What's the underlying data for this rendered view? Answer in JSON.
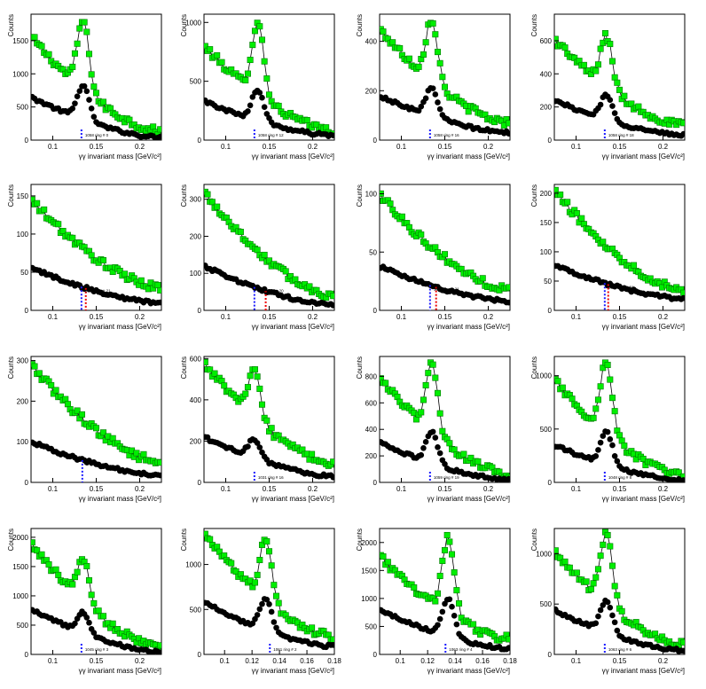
{
  "figure": {
    "background": "#ffffff",
    "green": "#00ee00",
    "black": "#000000",
    "blue": "#1a1aff",
    "red": "#ee0000"
  },
  "chart_data": [
    {
      "id": "p0",
      "type": "scatter",
      "xlabel": "γγ invariant mass [GeV/c²]",
      "ylabel": "Counts",
      "xlim": [
        0.075,
        0.225
      ],
      "ylim": [
        0,
        1900
      ],
      "xticks": [
        0.1,
        0.15,
        0.2
      ],
      "yticks": [
        0,
        500,
        1000,
        1500
      ],
      "annotation": "1058 ring # 0",
      "series": [
        {
          "color": "#00ee00",
          "peak_x": 0.135,
          "peak_y": 1800,
          "bg_start": 1560,
          "bg_end": 130
        },
        {
          "color": "#000000",
          "peak_x": 0.135,
          "peak_y": 830,
          "bg_start": 650,
          "bg_end": 40
        }
      ],
      "markers": [
        {
          "x": 0.133,
          "color": "#1a1aff"
        }
      ]
    },
    {
      "id": "p1",
      "type": "scatter",
      "xlabel": "γγ invariant mass [GeV/c²]",
      "ylabel": "Counts",
      "xlim": [
        0.075,
        0.225
      ],
      "ylim": [
        0,
        1070
      ],
      "xticks": [
        0.1,
        0.15,
        0.2
      ],
      "yticks": [
        0,
        500,
        1000
      ],
      "annotation": "1058 ring # 12",
      "series": [
        {
          "color": "#00ee00",
          "peak_x": 0.137,
          "peak_y": 1000,
          "bg_start": 800,
          "bg_end": 80
        },
        {
          "color": "#000000",
          "peak_x": 0.137,
          "peak_y": 430,
          "bg_start": 330,
          "bg_end": 40
        }
      ],
      "markers": [
        {
          "x": 0.133,
          "color": "#1a1aff"
        }
      ]
    },
    {
      "id": "p2",
      "type": "scatter",
      "xlabel": "γγ invariant mass [GeV/c²]",
      "ylabel": "Counts",
      "xlim": [
        0.075,
        0.225
      ],
      "ylim": [
        0,
        510
      ],
      "xticks": [
        0.1,
        0.15,
        0.2
      ],
      "yticks": [
        0,
        200,
        400
      ],
      "annotation": "1058 ring # 16",
      "series": [
        {
          "color": "#00ee00",
          "peak_x": 0.135,
          "peak_y": 490,
          "bg_start": 450,
          "bg_end": 70
        },
        {
          "color": "#000000",
          "peak_x": 0.135,
          "peak_y": 210,
          "bg_start": 180,
          "bg_end": 30
        }
      ],
      "markers": [
        {
          "x": 0.133,
          "color": "#1a1aff"
        }
      ]
    },
    {
      "id": "p3",
      "type": "scatter",
      "xlabel": "γγ invariant mass [GeV/c²]",
      "ylabel": "Counts",
      "xlim": [
        0.075,
        0.225
      ],
      "ylim": [
        0,
        760
      ],
      "xticks": [
        0.1,
        0.15,
        0.2
      ],
      "yticks": [
        0,
        200,
        400,
        600
      ],
      "annotation": "1058 ring # 18",
      "series": [
        {
          "color": "#00ee00",
          "peak_x": 0.135,
          "peak_y": 630,
          "bg_start": 610,
          "bg_end": 90
        },
        {
          "color": "#000000",
          "peak_x": 0.135,
          "peak_y": 270,
          "bg_start": 240,
          "bg_end": 30
        }
      ],
      "markers": [
        {
          "x": 0.133,
          "color": "#1a1aff"
        }
      ]
    },
    {
      "id": "p4",
      "type": "scatter",
      "xlabel": "γγ invariant mass [GeV/c²]",
      "ylabel": "Counts",
      "xlim": [
        0.075,
        0.225
      ],
      "ylim": [
        0,
        165
      ],
      "xticks": [
        0.1,
        0.15,
        0.2
      ],
      "yticks": [
        0,
        50,
        100,
        150
      ],
      "annotation": "1017 ring # 21",
      "series": [
        {
          "color": "#00ee00",
          "peak_x": 0.13,
          "peak_y": 0,
          "bg_start": 145,
          "bg_end": 30
        },
        {
          "color": "#000000",
          "peak_x": 0.13,
          "peak_y": 0,
          "bg_start": 56,
          "bg_end": 10
        }
      ],
      "markers": [
        {
          "x": 0.133,
          "color": "#1a1aff"
        },
        {
          "x": 0.138,
          "color": "#ee0000"
        }
      ]
    },
    {
      "id": "p5",
      "type": "scatter",
      "xlabel": "γγ invariant mass [GeV/c²]",
      "ylabel": "Counts",
      "xlim": [
        0.075,
        0.225
      ],
      "ylim": [
        0,
        340
      ],
      "xticks": [
        0.1,
        0.15,
        0.2
      ],
      "yticks": [
        0,
        100,
        200,
        300
      ],
      "annotation": "1031 ring # 20",
      "series": [
        {
          "color": "#00ee00",
          "peak_x": 0.13,
          "peak_y": 0,
          "bg_start": 320,
          "bg_end": 40
        },
        {
          "color": "#000000",
          "peak_x": 0.13,
          "peak_y": 0,
          "bg_start": 120,
          "bg_end": 15
        }
      ],
      "markers": [
        {
          "x": 0.133,
          "color": "#1a1aff"
        },
        {
          "x": 0.146,
          "color": "#ee0000"
        }
      ]
    },
    {
      "id": "p6",
      "type": "scatter",
      "xlabel": "γγ invariant mass [GeV/c²]",
      "ylabel": "Counts",
      "xlim": [
        0.075,
        0.225
      ],
      "ylim": [
        0,
        108
      ],
      "xticks": [
        0.1,
        0.15,
        0.2
      ],
      "yticks": [
        0,
        50,
        100
      ],
      "annotation": "1034 ring # 21",
      "series": [
        {
          "color": "#00ee00",
          "peak_x": 0.13,
          "peak_y": 0,
          "bg_start": 100,
          "bg_end": 18
        },
        {
          "color": "#000000",
          "peak_x": 0.13,
          "peak_y": 0,
          "bg_start": 38,
          "bg_end": 8
        }
      ],
      "markers": [
        {
          "x": 0.133,
          "color": "#1a1aff"
        },
        {
          "x": 0.14,
          "color": "#ee0000"
        }
      ]
    },
    {
      "id": "p7",
      "type": "scatter",
      "xlabel": "γγ invariant mass [GeV/c²]",
      "ylabel": "Counts",
      "xlim": [
        0.075,
        0.225
      ],
      "ylim": [
        0,
        215
      ],
      "xticks": [
        0.1,
        0.15,
        0.2
      ],
      "yticks": [
        0,
        50,
        100,
        150,
        200
      ],
      "annotation": "1063 ring # 21",
      "series": [
        {
          "color": "#00ee00",
          "peak_x": 0.13,
          "peak_y": 0,
          "bg_start": 205,
          "bg_end": 35
        },
        {
          "color": "#000000",
          "peak_x": 0.13,
          "peak_y": 0,
          "bg_start": 78,
          "bg_end": 20
        }
      ],
      "markers": [
        {
          "x": 0.133,
          "color": "#1a1aff"
        },
        {
          "x": 0.137,
          "color": "#ee0000"
        }
      ]
    },
    {
      "id": "p8",
      "type": "scatter",
      "xlabel": "γγ invariant mass [GeV/c²]",
      "ylabel": "Counts",
      "xlim": [
        0.075,
        0.225
      ],
      "ylim": [
        0,
        310
      ],
      "xticks": [
        0.1,
        0.15,
        0.2
      ],
      "yticks": [
        0,
        100,
        200,
        300
      ],
      "annotation": "ring # 26",
      "series": [
        {
          "color": "#00ee00",
          "peak_x": 0.135,
          "peak_y": 0,
          "bg_start": 290,
          "bg_end": 50
        },
        {
          "color": "#000000",
          "peak_x": 0.135,
          "peak_y": 0,
          "bg_start": 100,
          "bg_end": 18
        }
      ],
      "markers": [
        {
          "x": 0.134,
          "color": "#1a1aff"
        }
      ]
    },
    {
      "id": "p9",
      "type": "scatter",
      "xlabel": "γγ invariant mass [GeV/c²]",
      "ylabel": "Counts",
      "xlim": [
        0.075,
        0.225
      ],
      "ylim": [
        0,
        610
      ],
      "xticks": [
        0.1,
        0.15,
        0.2
      ],
      "yticks": [
        0,
        200,
        400,
        600
      ],
      "annotation": "1031 ring # 16",
      "series": [
        {
          "color": "#00ee00",
          "peak_x": 0.133,
          "peak_y": 540,
          "bg_start": 580,
          "bg_end": 90
        },
        {
          "color": "#000000",
          "peak_x": 0.133,
          "peak_y": 210,
          "bg_start": 220,
          "bg_end": 30
        }
      ],
      "markers": [
        {
          "x": 0.133,
          "color": "#1a1aff"
        }
      ]
    },
    {
      "id": "p10",
      "type": "scatter",
      "xlabel": "γγ invariant mass [GeV/c²]",
      "ylabel": "Counts",
      "xlim": [
        0.075,
        0.225
      ],
      "ylim": [
        0,
        950
      ],
      "xticks": [
        0.1,
        0.15,
        0.2
      ],
      "yticks": [
        0,
        200,
        400,
        600,
        800
      ],
      "annotation": "1059 ring # 19",
      "series": [
        {
          "color": "#00ee00",
          "peak_x": 0.135,
          "peak_y": 900,
          "bg_start": 780,
          "bg_end": 60
        },
        {
          "color": "#000000",
          "peak_x": 0.135,
          "peak_y": 380,
          "bg_start": 300,
          "bg_end": 20
        }
      ],
      "markers": [
        {
          "x": 0.133,
          "color": "#1a1aff"
        }
      ]
    },
    {
      "id": "p11",
      "type": "scatter",
      "xlabel": "γγ invariant mass [GeV/c²]",
      "ylabel": "Counts",
      "xlim": [
        0.075,
        0.225
      ],
      "ylim": [
        0,
        1180
      ],
      "xticks": [
        0.1,
        0.15,
        0.2
      ],
      "yticks": [
        0,
        500,
        1000
      ],
      "annotation": "1048 ring # 8",
      "series": [
        {
          "color": "#00ee00",
          "peak_x": 0.135,
          "peak_y": 1130,
          "bg_start": 960,
          "bg_end": 60
        },
        {
          "color": "#000000",
          "peak_x": 0.135,
          "peak_y": 480,
          "bg_start": 350,
          "bg_end": 20
        }
      ],
      "markers": [
        {
          "x": 0.133,
          "color": "#1a1aff"
        }
      ]
    },
    {
      "id": "p12",
      "type": "scatter",
      "xlabel": "γγ invariant mass [GeV/c²]",
      "ylabel": "Counts",
      "xlim": [
        0.075,
        0.225
      ],
      "ylim": [
        0,
        2150
      ],
      "xticks": [
        0.1,
        0.15,
        0.2
      ],
      "yticks": [
        0,
        500,
        1000,
        1500,
        2000
      ],
      "annotation": "1045 ring # 3",
      "series": [
        {
          "color": "#00ee00",
          "peak_x": 0.135,
          "peak_y": 1650,
          "bg_start": 1900,
          "bg_end": 120
        },
        {
          "color": "#000000",
          "peak_x": 0.135,
          "peak_y": 720,
          "bg_start": 780,
          "bg_end": 40
        }
      ],
      "markers": [
        {
          "x": 0.133,
          "color": "#1a1aff"
        }
      ]
    },
    {
      "id": "p13",
      "type": "scatter",
      "xlabel": "γγ invariant mass [GeV/c²]",
      "ylabel": "Counts",
      "xlim": [
        0.085,
        0.18
      ],
      "ylim": [
        0,
        1400
      ],
      "xticks": [
        0.1,
        0.12,
        0.14,
        0.16,
        0.18
      ],
      "yticks": [
        0,
        500,
        1000
      ],
      "annotation": "1061 ring # 2",
      "series": [
        {
          "color": "#00ee00",
          "peak_x": 0.13,
          "peak_y": 1270,
          "bg_start": 1330,
          "bg_end": 200
        },
        {
          "color": "#000000",
          "peak_x": 0.13,
          "peak_y": 620,
          "bg_start": 580,
          "bg_end": 90
        }
      ],
      "markers": [
        {
          "x": 0.133,
          "color": "#1a1aff"
        }
      ]
    },
    {
      "id": "p14",
      "type": "scatter",
      "xlabel": "γγ invariant mass [GeV/c²]",
      "ylabel": "Counts",
      "xlim": [
        0.085,
        0.18
      ],
      "ylim": [
        0,
        2250
      ],
      "xticks": [
        0.1,
        0.12,
        0.14,
        0.16,
        0.18
      ],
      "yticks": [
        0,
        500,
        1000,
        1500,
        2000
      ],
      "annotation": "1063 ring # 4",
      "series": [
        {
          "color": "#00ee00",
          "peak_x": 0.135,
          "peak_y": 2100,
          "bg_start": 1750,
          "bg_end": 280
        },
        {
          "color": "#000000",
          "peak_x": 0.135,
          "peak_y": 1000,
          "bg_start": 790,
          "bg_end": 110
        }
      ],
      "markers": [
        {
          "x": 0.133,
          "color": "#1a1aff"
        }
      ]
    },
    {
      "id": "p15",
      "type": "scatter",
      "xlabel": "γγ invariant mass [GeV/c²]",
      "ylabel": "Counts",
      "xlim": [
        0.075,
        0.225
      ],
      "ylim": [
        0,
        1250
      ],
      "xticks": [
        0.1,
        0.15,
        0.2
      ],
      "yticks": [
        0,
        500,
        1000
      ],
      "annotation": "1063 ring # 6",
      "series": [
        {
          "color": "#00ee00",
          "peak_x": 0.135,
          "peak_y": 1200,
          "bg_start": 1020,
          "bg_end": 100
        },
        {
          "color": "#000000",
          "peak_x": 0.135,
          "peak_y": 540,
          "bg_start": 440,
          "bg_end": 40
        }
      ],
      "markers": [
        {
          "x": 0.133,
          "color": "#1a1aff"
        }
      ]
    }
  ]
}
